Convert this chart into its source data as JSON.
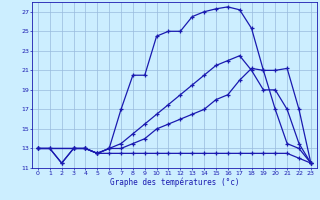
{
  "xlabel": "Graphe des températures (°c)",
  "bg_color": "#cceeff",
  "line_color": "#1a1ab0",
  "grid_color": "#99bbdd",
  "xlim": [
    -0.5,
    23.5
  ],
  "ylim": [
    11,
    28
  ],
  "xticks": [
    0,
    1,
    2,
    3,
    4,
    5,
    6,
    7,
    8,
    9,
    10,
    11,
    12,
    13,
    14,
    15,
    16,
    17,
    18,
    19,
    20,
    21,
    22,
    23
  ],
  "yticks": [
    11,
    13,
    15,
    17,
    19,
    21,
    23,
    25,
    27
  ],
  "line1_x": [
    0,
    1,
    2,
    3,
    4,
    5,
    6,
    7,
    8,
    9,
    10,
    11,
    12,
    13,
    14,
    15,
    16,
    17,
    18,
    19,
    20,
    21,
    22,
    23
  ],
  "line1_y": [
    13,
    13,
    11.5,
    13,
    13,
    12.5,
    13,
    17,
    20.5,
    20.5,
    24.5,
    25,
    25,
    26.5,
    27,
    27.3,
    27.5,
    27.2,
    25.3,
    21,
    17,
    13.5,
    13,
    11.5
  ],
  "line2_x": [
    0,
    1,
    2,
    3,
    4,
    5,
    6,
    7,
    8,
    9,
    10,
    11,
    12,
    13,
    14,
    15,
    16,
    17,
    18,
    19,
    20,
    21,
    22,
    23
  ],
  "line2_y": [
    13,
    13,
    11.5,
    13,
    13,
    12.5,
    12.5,
    12.5,
    12.5,
    12.5,
    12.5,
    12.5,
    12.5,
    12.5,
    12.5,
    12.5,
    12.5,
    12.5,
    12.5,
    12.5,
    12.5,
    12.5,
    12,
    11.5
  ],
  "line3_x": [
    0,
    3,
    4,
    5,
    6,
    7,
    8,
    9,
    10,
    11,
    12,
    13,
    14,
    15,
    16,
    17,
    18,
    19,
    20,
    21,
    22,
    23
  ],
  "line3_y": [
    13,
    13,
    13,
    12.5,
    13,
    13.5,
    14.5,
    15.5,
    16.5,
    17.5,
    18.5,
    19.5,
    20.5,
    21.5,
    22,
    22.5,
    21,
    19,
    19,
    17,
    13.5,
    11.5
  ],
  "line4_x": [
    0,
    3,
    4,
    5,
    6,
    7,
    8,
    9,
    10,
    11,
    12,
    13,
    14,
    15,
    16,
    17,
    18,
    19,
    20,
    21,
    22,
    23
  ],
  "line4_y": [
    13,
    13,
    13,
    12.5,
    13,
    13,
    13.5,
    14,
    15,
    15.5,
    16,
    16.5,
    17,
    18,
    18.5,
    20,
    21.2,
    21,
    21,
    21.2,
    17,
    11.5
  ]
}
